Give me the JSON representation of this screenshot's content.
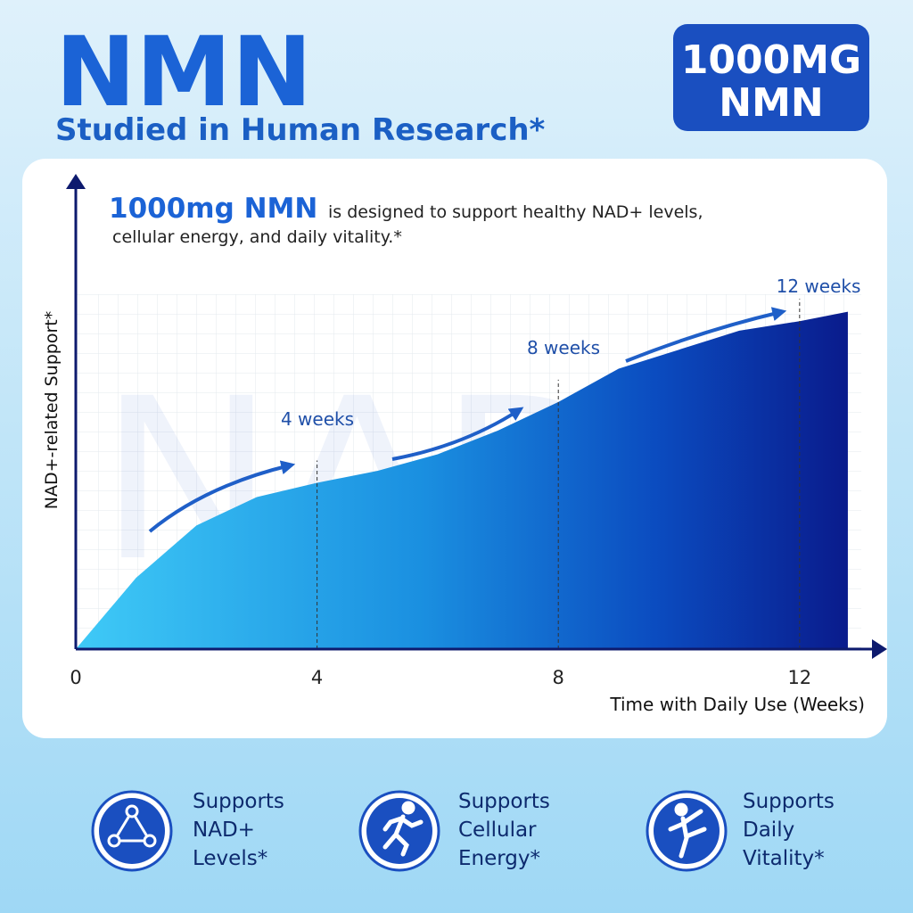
{
  "header": {
    "title": "NMN",
    "subtitle": "Studied in Human Research*",
    "badge": [
      "1000MG",
      "NMN"
    ]
  },
  "intro": {
    "highlight": "1000mg NMN",
    "text": "is designed to support healthy NAD+ levels,",
    "text2": "cellular energy, and daily vitality.*"
  },
  "chart_data": {
    "type": "area",
    "watermark": "NAD+",
    "x_label": "Time with Daily Use (Weeks)",
    "y_label": "NAD+-related Support*",
    "x": [
      0,
      1,
      2,
      3,
      4,
      5,
      6,
      7,
      8,
      9,
      10,
      11,
      12,
      12.8
    ],
    "values": [
      0,
      15,
      26,
      32,
      35,
      37.5,
      41,
      46,
      52,
      59,
      63,
      67,
      69,
      71
    ],
    "xlim": [
      0,
      13.2
    ],
    "ylim": [
      0,
      100
    ],
    "xticks": [
      0,
      4,
      8,
      12
    ],
    "annotations": [
      "4 weeks",
      "8 weeks",
      "12 weeks"
    ]
  },
  "features": [
    {
      "lines": [
        "Supports",
        "NAD+",
        "Levels*"
      ]
    },
    {
      "lines": [
        "Supports",
        "Cellular",
        "Energy*"
      ]
    },
    {
      "lines": [
        "Supports",
        "Daily",
        "Vitality*"
      ]
    }
  ]
}
